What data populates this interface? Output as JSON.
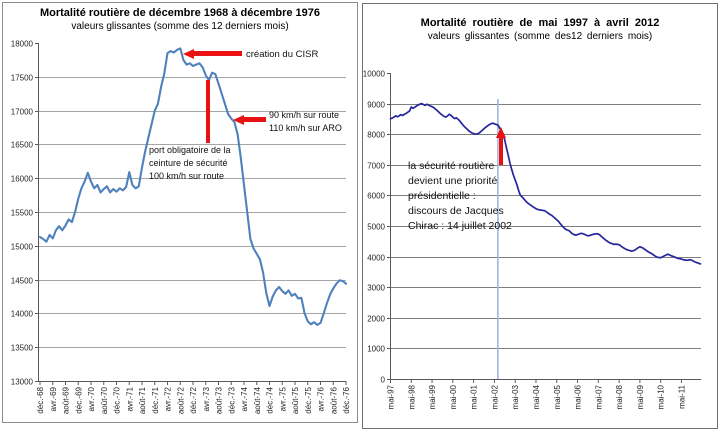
{
  "page": {
    "background": "#ffffff"
  },
  "chart_data": [
    {
      "type": "line",
      "title": "Mortalité routière de décembre 1968 à décembre 1976",
      "subtitle": "valeurs glissantes (somme des 12 derniers mois)",
      "ylim": [
        13000,
        18000
      ],
      "ytick_step": 500,
      "x_ticklabels": [
        "déc.-68",
        "avr.-69",
        "août-69",
        "déc.-69",
        "avr.-70",
        "août-70",
        "déc.-70",
        "avr.-71",
        "août-71",
        "déc.-71",
        "avr.-72",
        "août-72",
        "déc.-72",
        "avr.-73",
        "août-73",
        "déc.-73",
        "avr.-74",
        "août-74",
        "déc.-74",
        "avr.-75",
        "août-75",
        "déc.-75",
        "avr.-76",
        "août-76",
        "déc.-76"
      ],
      "tick_every_months": 4,
      "line_color": "#4F81BD",
      "grid_color": "#A6A6A6",
      "values": [
        15130,
        15100,
        15060,
        15160,
        15110,
        15230,
        15290,
        15230,
        15300,
        15390,
        15350,
        15500,
        15700,
        15850,
        15950,
        16080,
        15950,
        15850,
        15900,
        15790,
        15840,
        15880,
        15790,
        15840,
        15800,
        15850,
        15820,
        15870,
        16090,
        15900,
        15850,
        15880,
        16160,
        16400,
        16600,
        16800,
        17000,
        17100,
        17350,
        17550,
        17850,
        17880,
        17860,
        17900,
        17920,
        17750,
        17680,
        17700,
        17660,
        17680,
        17700,
        17640,
        17520,
        17450,
        17560,
        17540,
        17400,
        17250,
        17100,
        16950,
        16880,
        16830,
        16650,
        16300,
        15900,
        15500,
        15100,
        14960,
        14880,
        14800,
        14600,
        14300,
        14110,
        14250,
        14340,
        14390,
        14330,
        14290,
        14340,
        14260,
        14290,
        14220,
        14230,
        14000,
        13880,
        13840,
        13870,
        13830,
        13860,
        14000,
        14150,
        14280,
        14370,
        14440,
        14490,
        14480,
        14440
      ],
      "annotations": [
        {
          "text": "création du CISR",
          "arrow_color": "#e91111"
        },
        {
          "text": "port obligatoire de la\nceinture de sécurité\n100 km/h sur route",
          "marker_color": "#e91111"
        },
        {
          "text": "90 km/h sur route\n110 km/h sur ARO",
          "arrow_color": "#e91111"
        }
      ]
    },
    {
      "type": "line",
      "title": "Mortalité routière de mai 1997 à avril 2012",
      "subtitle": "valeurs glissantes (somme des12 derniers mois)",
      "ylim": [
        0,
        10000
      ],
      "ytick_step": 1000,
      "x_ticklabels": [
        "mai-97",
        "mai-98",
        "mai-99",
        "mai-00",
        "mai-01",
        "mai-02",
        "mai-03",
        "mai-04",
        "mai-05",
        "mai-06",
        "mai-07",
        "mai-08",
        "mai-09",
        "mai-10",
        "mai-11"
      ],
      "tick_every_months": 12,
      "line_color": "#26269C",
      "grid_color": "#7F7F7F",
      "values": [
        8500,
        8530,
        8560,
        8600,
        8570,
        8600,
        8640,
        8610,
        8650,
        8680,
        8720,
        8760,
        8890,
        8850,
        8880,
        8920,
        8960,
        8980,
        9000,
        8970,
        8940,
        8980,
        8950,
        8920,
        8900,
        8870,
        8820,
        8770,
        8720,
        8660,
        8620,
        8580,
        8560,
        8600,
        8650,
        8610,
        8560,
        8510,
        8540,
        8490,
        8430,
        8360,
        8290,
        8230,
        8180,
        8120,
        8080,
        8040,
        8020,
        8000,
        8010,
        8030,
        8080,
        8130,
        8180,
        8230,
        8270,
        8310,
        8340,
        8360,
        8340,
        8320,
        8300,
        8210,
        8100,
        7980,
        7800,
        7550,
        7300,
        7050,
        6850,
        6650,
        6500,
        6350,
        6150,
        6000,
        5950,
        5880,
        5820,
        5760,
        5720,
        5680,
        5640,
        5600,
        5570,
        5540,
        5530,
        5520,
        5510,
        5500,
        5460,
        5420,
        5380,
        5350,
        5300,
        5250,
        5200,
        5150,
        5080,
        5010,
        4950,
        4900,
        4870,
        4850,
        4800,
        4750,
        4720,
        4700,
        4720,
        4740,
        4760,
        4750,
        4730,
        4700,
        4680,
        4690,
        4710,
        4730,
        4740,
        4750,
        4740,
        4700,
        4650,
        4600,
        4550,
        4510,
        4470,
        4440,
        4420,
        4400,
        4410,
        4400,
        4390,
        4350,
        4300,
        4270,
        4240,
        4220,
        4200,
        4180,
        4190,
        4210,
        4250,
        4290,
        4320,
        4300,
        4270,
        4230,
        4190,
        4150,
        4120,
        4090,
        4050,
        4010,
        3980,
        3970,
        3960,
        3990,
        4020,
        4050,
        4080,
        4060,
        4030,
        4010,
        3990,
        3960,
        3940,
        3930,
        3920,
        3900,
        3890,
        3880,
        3890,
        3900,
        3880,
        3850,
        3820,
        3800,
        3780,
        3760
      ],
      "annotations": [
        {
          "text": "la sécurité routière\ndevient une priorité\nprésidentielle :\ndiscours de Jacques\nChirac : 14 juillet 2002",
          "arrow_color": "#e91111"
        }
      ],
      "vline": {
        "month_index": 62,
        "color": "#9DB9DC"
      }
    }
  ]
}
